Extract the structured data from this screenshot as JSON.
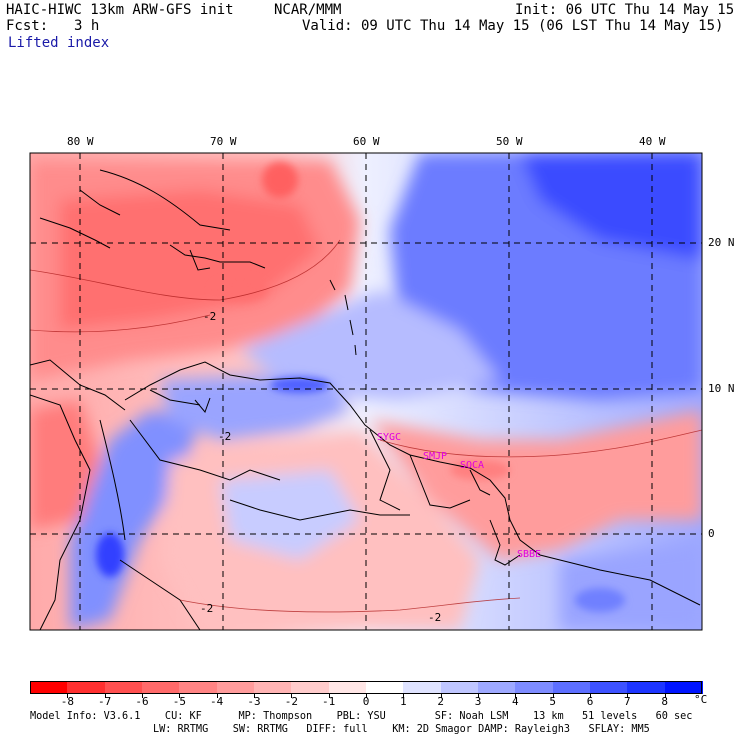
{
  "header": {
    "model": "HAIC-HIWC 13km ARW-GFS init",
    "org": "NCAR/MMM",
    "init": "Init: 06 UTC Thu 14 May 15",
    "fcst_label": "Fcst:",
    "fcst_value": "3 h",
    "valid": "Valid: 09 UTC Thu 14 May 15 (06 LST Thu 14 May 15)",
    "field": "Lifted index"
  },
  "map": {
    "lon_labels": [
      "80 W",
      "70 W",
      "60 W",
      "50 W",
      "40 W"
    ],
    "lat_labels": [
      "20 N",
      "10 N",
      "0"
    ],
    "stations": [
      "SYGC",
      "SMJP",
      "SOCA",
      "SBBE"
    ],
    "contour_labels": [
      "-2",
      "-2",
      "-2",
      "-2"
    ],
    "colors": {
      "negative_strong": "#ff1a1a",
      "neutral": "#ffffff",
      "positive_strong": "#0a14ff",
      "station": "#e000e0",
      "coast": "#000000"
    }
  },
  "colorbar": {
    "ticks": [
      "-8",
      "-7",
      "-6",
      "-5",
      "-4",
      "-3",
      "-2",
      "-1",
      "0",
      "1",
      "2",
      "3",
      "4",
      "5",
      "6",
      "7",
      "8"
    ],
    "unit": "°C",
    "colors": [
      "#ff0000",
      "#ff3030",
      "#ff5050",
      "#ff6a6a",
      "#ff8484",
      "#ff9c9c",
      "#ffb4b4",
      "#ffcccc",
      "#ffe6e6",
      "#ffffff",
      "#dfe3ff",
      "#bfc6ff",
      "#9ea9ff",
      "#7e8cff",
      "#5d6fff",
      "#3d52ff",
      "#1d35ff",
      "#0014ff"
    ]
  },
  "footer": {
    "line1": "Model Info: V3.6.1    CU: KF      MP: Thompson    PBL: YSU        SF: Noah LSM    13 km   51 levels   60 sec",
    "line2": "LW: RRTMG    SW: RRTMG   DIFF: full    KM: 2D Smagor DAMP: Rayleigh3   SFLAY: MM5"
  }
}
